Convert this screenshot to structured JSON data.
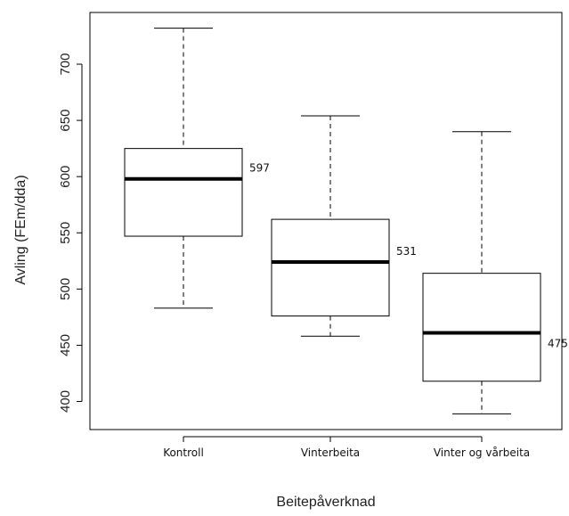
{
  "chart_data": {
    "type": "boxplot",
    "xlabel": "Beitepåverknad",
    "ylabel": "Avling (FEm/dda)",
    "ylim": [
      375,
      746
    ],
    "yticks": [
      400,
      450,
      500,
      550,
      600,
      650,
      700
    ],
    "grid": false,
    "categories": [
      "Kontroll",
      "Vinterbeita",
      "Vinter og vårbeita"
    ],
    "boxes": [
      {
        "category": "Kontroll",
        "whisker_low": 483,
        "q1": 547,
        "median": 598,
        "q3": 625,
        "whisker_high": 732,
        "annotation": "597"
      },
      {
        "category": "Vinterbeita",
        "whisker_low": 458,
        "q1": 476,
        "median": 524,
        "q3": 562,
        "whisker_high": 654,
        "annotation": "531"
      },
      {
        "category": "Vinter og vårbeita",
        "whisker_low": 389,
        "q1": 418,
        "median": 461,
        "q3": 514,
        "whisker_high": 640,
        "annotation": "475"
      }
    ],
    "colors": {
      "box_stroke": "#000000",
      "median": "#000000",
      "axis": "#000000"
    }
  }
}
